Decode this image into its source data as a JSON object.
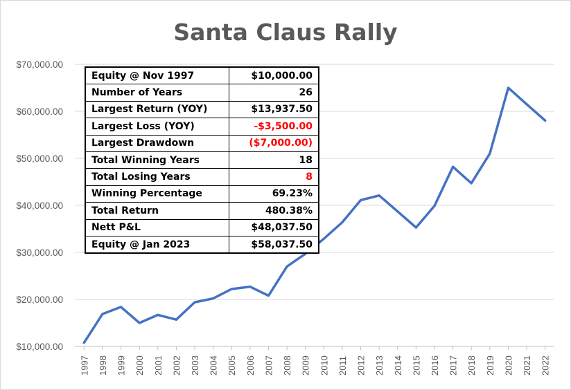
{
  "chart_data": {
    "type": "line",
    "title": "Santa Claus Rally",
    "xlabel": "",
    "ylabel": "",
    "ylim": [
      10000,
      70000
    ],
    "yticks": [
      10000,
      20000,
      30000,
      40000,
      50000,
      60000,
      70000
    ],
    "ytick_labels": [
      "$10,000.00",
      "$20,000.00",
      "$30,000.00",
      "$40,000.00",
      "$50,000.00",
      "$60,000.00",
      "$70,000.00"
    ],
    "grid": true,
    "legend": "none",
    "categories": [
      "1997",
      "1998",
      "1999",
      "2000",
      "2001",
      "2002",
      "2003",
      "2004",
      "2005",
      "2006",
      "2007",
      "2008",
      "2009",
      "2010",
      "2011",
      "2012",
      "2013",
      "2014",
      "2015",
      "2016",
      "2017",
      "2018",
      "2019",
      "2020",
      "2021",
      "2022"
    ],
    "series": [
      {
        "color": "#4472c4",
        "values": [
          10800,
          16900,
          18400,
          15000,
          16700,
          15700,
          19400,
          20200,
          22200,
          22700,
          20800,
          27000,
          29700,
          32900,
          36400,
          41100,
          42100,
          38700,
          35300,
          39900,
          48200,
          44700,
          51000,
          65000,
          61500,
          58037.5
        ]
      }
    ]
  },
  "stats": {
    "rows": [
      {
        "label": "Equity @ Nov 1997",
        "value": "$10,000.00",
        "color": "#000000"
      },
      {
        "label": "Number of Years",
        "value": "26",
        "color": "#000000"
      },
      {
        "label": "Largest Return (YOY)",
        "value": "$13,937.50",
        "color": "#000000"
      },
      {
        "label": "Largest Loss (YOY)",
        "value": "-$3,500.00",
        "color": "#ff0000"
      },
      {
        "label": "Largest Drawdown",
        "value": "($7,000.00)",
        "color": "#ff0000"
      },
      {
        "label": "Total Winning Years",
        "value": "18",
        "color": "#000000"
      },
      {
        "label": "Total Losing Years",
        "value": "8",
        "color": "#ff0000"
      },
      {
        "label": "Winning Percentage",
        "value": "69.23%",
        "color": "#000000"
      },
      {
        "label": "Total Return",
        "value": "480.38%",
        "color": "#000000"
      },
      {
        "label": "Nett P&L",
        "value": "$48,037.50",
        "color": "#000000"
      },
      {
        "label": "Equity @ Jan 2023",
        "value": "$58,037.50",
        "color": "#000000"
      }
    ]
  }
}
